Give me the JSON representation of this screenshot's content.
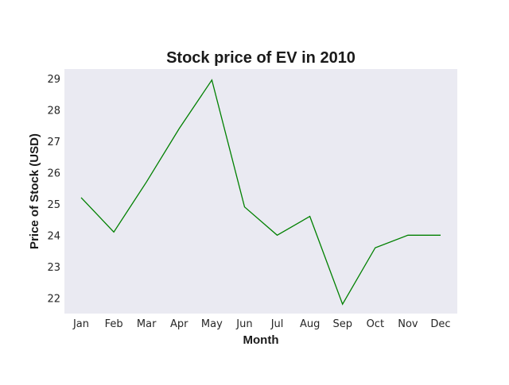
{
  "chart_data": {
    "type": "line",
    "title": "Stock price of EV in 2010",
    "xlabel": "Month",
    "ylabel": "Price of Stock (USD)",
    "categories": [
      "Jan",
      "Feb",
      "Mar",
      "Apr",
      "May",
      "Jun",
      "Jul",
      "Aug",
      "Sep",
      "Oct",
      "Nov",
      "Dec"
    ],
    "series": [
      {
        "values": [
          25.2,
          24.1,
          25.7,
          27.4,
          28.95,
          24.9,
          24.0,
          24.6,
          21.8,
          23.6,
          24.0,
          24.0
        ],
        "color": "#008000"
      }
    ],
    "ylim": [
      21.5,
      29.3
    ],
    "yticks": [
      22,
      23,
      24,
      25,
      26,
      27,
      28,
      29
    ],
    "grid": false,
    "background": "#eaeaf2"
  }
}
